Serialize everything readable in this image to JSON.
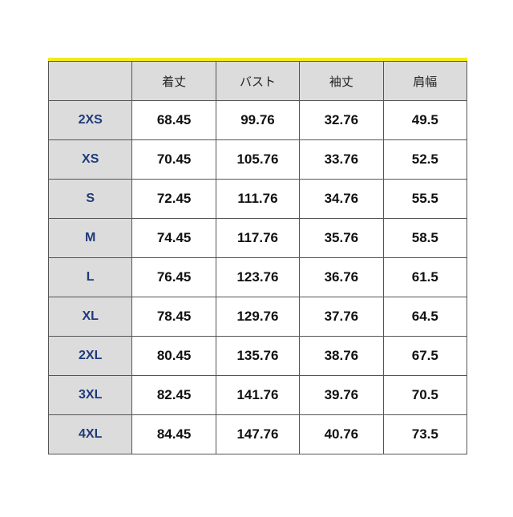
{
  "table": {
    "header_color": "#dcdcdc",
    "accent_line_color": "#f2ec1c",
    "size_label_color": "#1f3a7a",
    "columns": [
      "",
      "着丈",
      "バスト",
      "袖丈",
      "肩幅"
    ],
    "rows": [
      [
        "2XS",
        "68.45",
        "99.76",
        "32.76",
        "49.5"
      ],
      [
        "XS",
        "70.45",
        "105.76",
        "33.76",
        "52.5"
      ],
      [
        "S",
        "72.45",
        "111.76",
        "34.76",
        "55.5"
      ],
      [
        "M",
        "74.45",
        "117.76",
        "35.76",
        "58.5"
      ],
      [
        "L",
        "76.45",
        "123.76",
        "36.76",
        "61.5"
      ],
      [
        "XL",
        "78.45",
        "129.76",
        "37.76",
        "64.5"
      ],
      [
        "2XL",
        "80.45",
        "135.76",
        "38.76",
        "67.5"
      ],
      [
        "3XL",
        "82.45",
        "141.76",
        "39.76",
        "70.5"
      ],
      [
        "4XL",
        "84.45",
        "147.76",
        "40.76",
        "73.5"
      ]
    ]
  }
}
